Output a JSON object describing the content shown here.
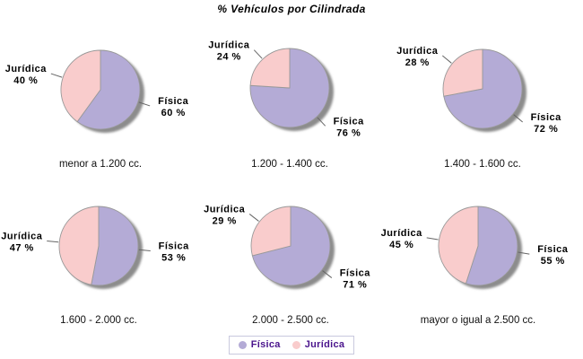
{
  "title": "% Vehículos por Cilindrada",
  "legend": {
    "text_color": "#4a148c",
    "border_color": "#c9c9de"
  },
  "chart_data": {
    "type": "pie",
    "layout": "small multiples, 2 rows x 3 columns",
    "title": "% Vehículos por Cilindrada",
    "unit": "%",
    "start_angle": "top",
    "direction": "clockwise",
    "shadow_color": "#8c8c8c",
    "slice_stroke_color": "#999999",
    "series": [
      {
        "name": "Física",
        "color": "#b4abd6"
      },
      {
        "name": "Jurídica",
        "color": "#f9cccc"
      }
    ],
    "charts": [
      {
        "category": "menor a 1.200 cc.",
        "values": [
          60,
          40
        ],
        "labels": [
          "Física 60 %",
          "Jurídica 40 %"
        ]
      },
      {
        "category": "1.200 - 1.400 cc.",
        "values": [
          76,
          24
        ],
        "labels": [
          "Física 76 %",
          "Jurídica 24 %"
        ]
      },
      {
        "category": "1.400 - 1.600 cc.",
        "values": [
          72,
          28
        ],
        "labels": [
          "Física 72 %",
          "Jurídica 28 %"
        ]
      },
      {
        "category": "1.600 - 2.000 cc.",
        "values": [
          53,
          47
        ],
        "labels": [
          "Física 53 %",
          "Jurídica 47 %"
        ]
      },
      {
        "category": "2.000 - 2.500 cc.",
        "values": [
          71,
          29
        ],
        "labels": [
          "Física 71 %",
          "Jurídica 29 %"
        ]
      },
      {
        "category": "mayor o igual a 2.500 cc.",
        "values": [
          55,
          45
        ],
        "labels": [
          "Física 55 %",
          "Jurídica 45 %"
        ]
      }
    ]
  }
}
